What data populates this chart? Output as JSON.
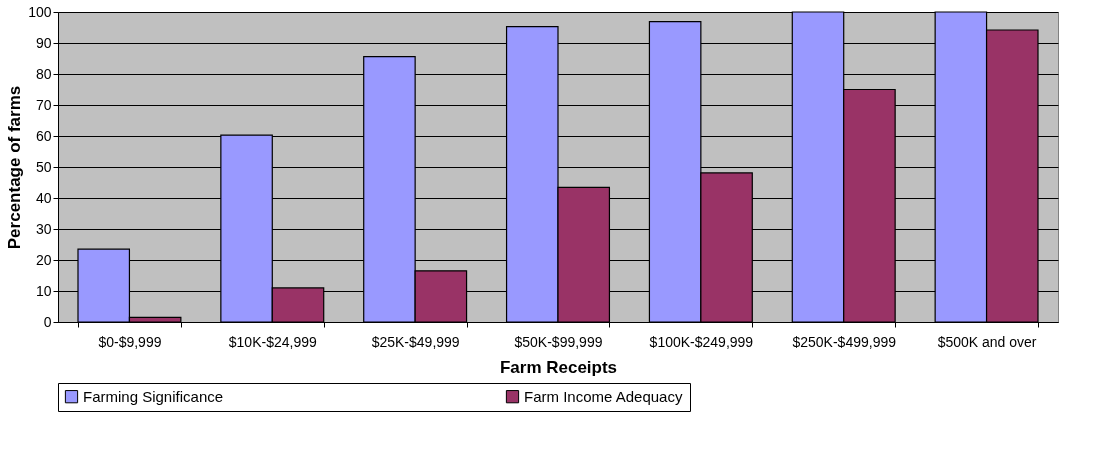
{
  "chart_data": {
    "type": "bar",
    "xlabel": "Farm Receipts",
    "ylabel": "Percentage of farms",
    "categories": [
      "$0-$9,999",
      "$10K-$24,999",
      "$25K-$49,999",
      "$50K-$99,999",
      "$100K-$249,999",
      "$250K-$499,999",
      "$500K and over"
    ],
    "series": [
      {
        "name": "Farming Significance",
        "color": "#9999ff",
        "values": [
          23.5,
          60.3,
          85.6,
          95.3,
          96.9,
          100,
          100
        ]
      },
      {
        "name": "Farm Income Adequacy",
        "color": "#993366",
        "values": [
          1.5,
          11,
          16.5,
          43.4,
          48.1,
          75.0,
          94.2
        ]
      }
    ],
    "ylim": [
      0,
      100
    ],
    "yticks": [
      0,
      10,
      20,
      30,
      40,
      50,
      60,
      70,
      80,
      90,
      100
    ],
    "grid": "y",
    "legend": "bottom"
  }
}
